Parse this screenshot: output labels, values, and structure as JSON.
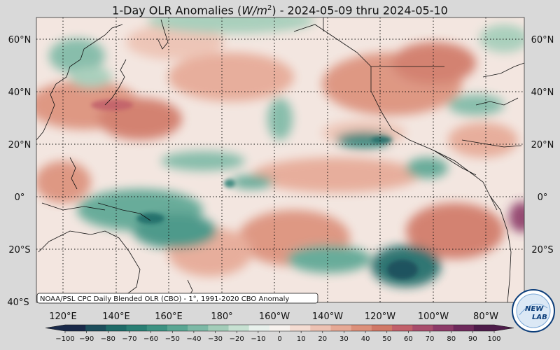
{
  "title": {
    "prefix": "1-Day OLR Anomalies (",
    "unit_base": "W/m",
    "unit_exp": "2",
    "suffix": ") - 2024-05-09 thru 2024-05-10"
  },
  "credit": "NOAA/PSL CPC Daily Blended OLR (CBO) - 1°, 1991-2020 CBO Anomaly",
  "lat_labels": [
    "60°N",
    "40°N",
    "20°N",
    "0°",
    "20°S",
    "40°S"
  ],
  "lat_values": [
    60,
    40,
    20,
    0,
    -20,
    -40
  ],
  "lon_labels": [
    "120°E",
    "140°E",
    "160°E",
    "180°",
    "160°W",
    "140°W",
    "120°W",
    "100°W",
    "80°W"
  ],
  "lon_values": [
    120,
    140,
    160,
    180,
    200,
    220,
    240,
    260,
    280
  ],
  "colorbar": {
    "ticks": [
      "−100",
      "−90",
      "−80",
      "−70",
      "−60",
      "−50",
      "−40",
      "−30",
      "−20",
      "−10",
      "0",
      "10",
      "20",
      "30",
      "40",
      "50",
      "60",
      "70",
      "80",
      "90",
      "100"
    ],
    "min": -100,
    "max": 100,
    "colors": [
      "#1a2a4a",
      "#1d4e5c",
      "#1f6b68",
      "#2a7f74",
      "#3d9282",
      "#5aa693",
      "#7db9a6",
      "#a3cdb9",
      "#c7e1d2",
      "#e8f1ec",
      "#f7f2ee",
      "#f4dcd2",
      "#edc2b3",
      "#e6a995",
      "#dc907a",
      "#d07866",
      "#c1606a",
      "#a84d6c",
      "#8c3a68",
      "#6e2a5c",
      "#4e1c4a"
    ]
  },
  "logo": {
    "text_a": "NEW",
    "text_b": "LAB"
  },
  "map": {
    "lon_min": 112,
    "lon_max": 296,
    "lat_min": -41,
    "lat_max": 69
  }
}
